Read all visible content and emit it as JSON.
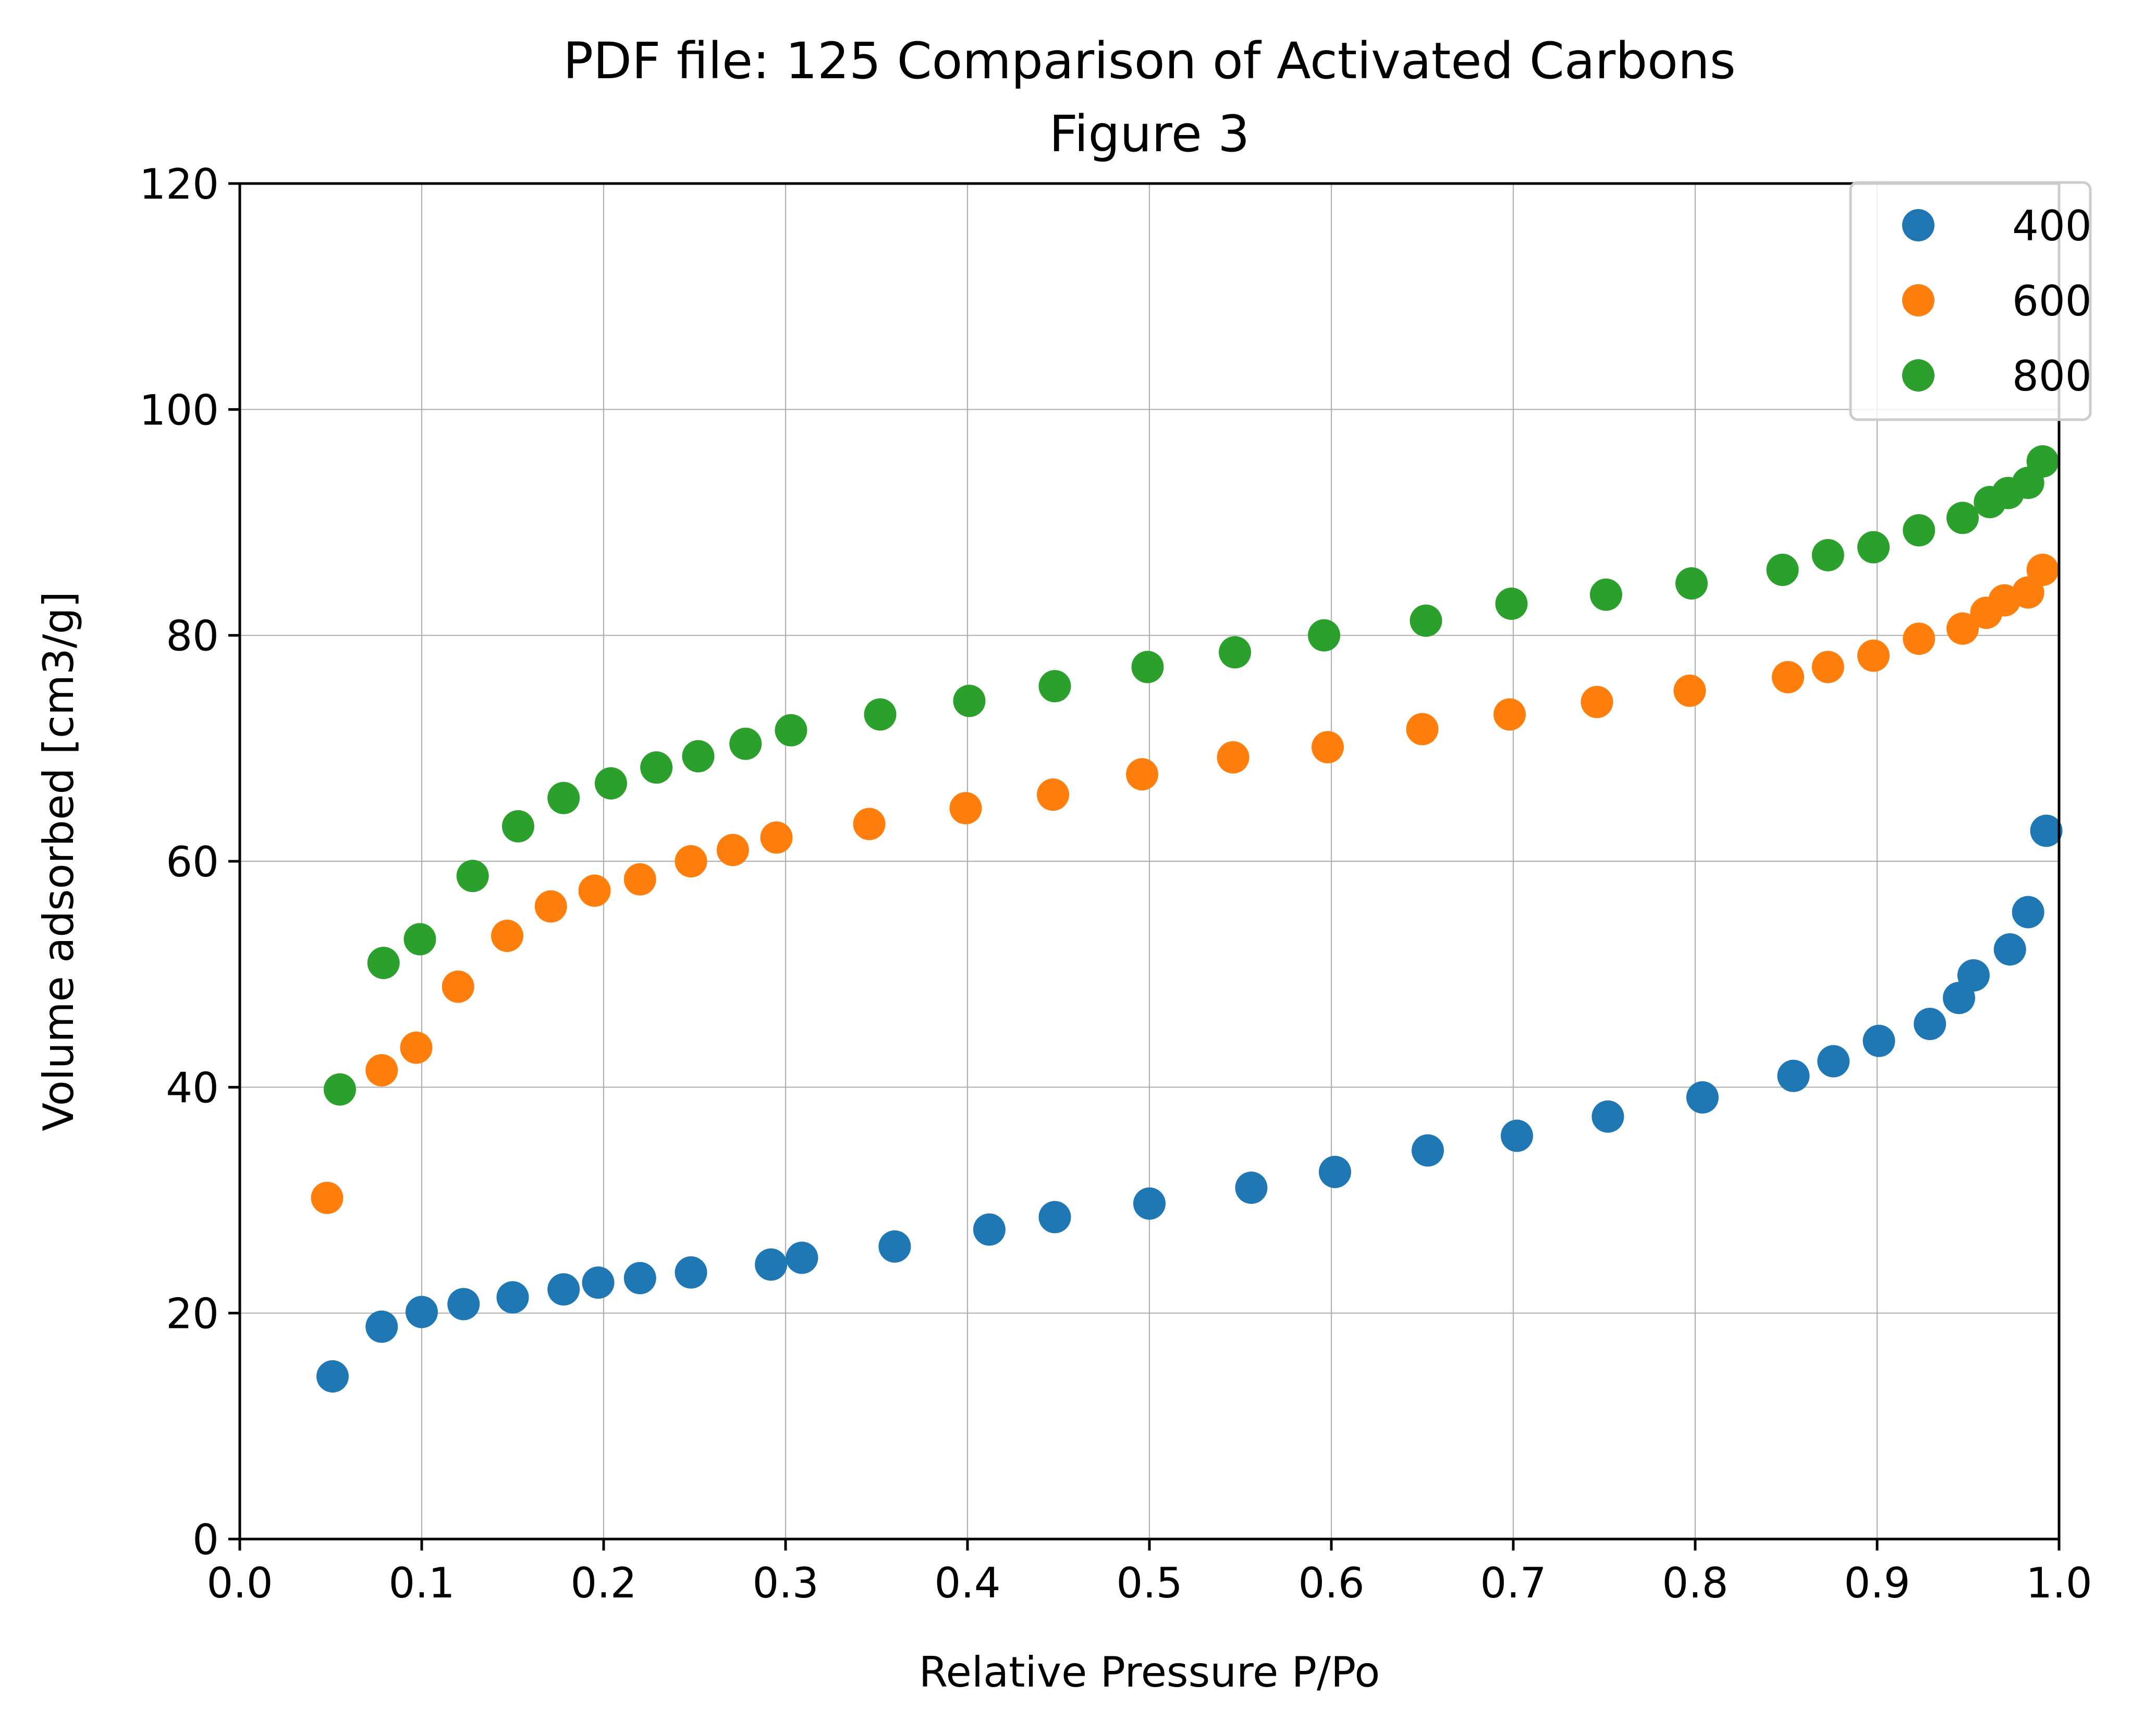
{
  "chart_data": {
    "type": "scatter",
    "title": "PDF file: 125 Comparison of Activated Carbons",
    "subtitle": "Figure 3",
    "xlabel": "Relative Pressure P/Po",
    "ylabel": "Volume adsorbed [cm3/g]",
    "xlim": [
      0.0,
      1.0
    ],
    "ylim": [
      0,
      120
    ],
    "xticks": [
      "0.0",
      "0.1",
      "0.2",
      "0.3",
      "0.4",
      "0.5",
      "0.6",
      "0.7",
      "0.8",
      "0.9",
      "1.0"
    ],
    "yticks": [
      "0",
      "20",
      "40",
      "60",
      "80",
      "100",
      "120"
    ],
    "grid": true,
    "legend_position": "top-right",
    "series": [
      {
        "name": "400",
        "color": "#1f77b4",
        "x": [
          0.051,
          0.078,
          0.1,
          0.123,
          0.15,
          0.178,
          0.197,
          0.22,
          0.248,
          0.292,
          0.309,
          0.36,
          0.412,
          0.448,
          0.5,
          0.556,
          0.602,
          0.653,
          0.702,
          0.752,
          0.804,
          0.854,
          0.876,
          0.901,
          0.929,
          0.945,
          0.953,
          0.973,
          0.983,
          0.993
        ],
        "y": [
          14.4,
          18.8,
          20.1,
          20.8,
          21.4,
          22.1,
          22.7,
          23.1,
          23.6,
          24.3,
          24.9,
          25.9,
          27.4,
          28.5,
          29.7,
          31.1,
          32.5,
          34.4,
          35.7,
          37.4,
          39.1,
          41.0,
          42.3,
          44.1,
          45.6,
          47.9,
          49.9,
          52.2,
          55.5,
          62.7
        ]
      },
      {
        "name": "600",
        "color": "#ff7f0e",
        "x": [
          0.048,
          0.078,
          0.097,
          0.12,
          0.147,
          0.171,
          0.195,
          0.22,
          0.248,
          0.271,
          0.295,
          0.346,
          0.399,
          0.447,
          0.496,
          0.546,
          0.598,
          0.65,
          0.698,
          0.746,
          0.797,
          0.851,
          0.873,
          0.898,
          0.923,
          0.947,
          0.96,
          0.97,
          0.983,
          0.991
        ],
        "y": [
          30.2,
          41.5,
          43.5,
          48.9,
          53.4,
          56.0,
          57.4,
          58.4,
          60.0,
          61.0,
          62.1,
          63.3,
          64.7,
          65.9,
          67.7,
          69.2,
          70.1,
          71.7,
          73.0,
          74.1,
          75.1,
          76.3,
          77.2,
          78.2,
          79.7,
          80.6,
          82.0,
          83.1,
          83.8,
          85.8
        ]
      },
      {
        "name": "800",
        "color": "#2ca02c",
        "x": [
          0.055,
          0.079,
          0.099,
          0.128,
          0.153,
          0.178,
          0.204,
          0.229,
          0.252,
          0.278,
          0.303,
          0.352,
          0.401,
          0.448,
          0.499,
          0.547,
          0.596,
          0.652,
          0.699,
          0.751,
          0.798,
          0.848,
          0.873,
          0.898,
          0.923,
          0.947,
          0.962,
          0.972,
          0.983,
          0.991
        ],
        "y": [
          39.8,
          51.0,
          53.1,
          58.7,
          63.1,
          65.6,
          66.9,
          68.3,
          69.3,
          70.4,
          71.6,
          73.0,
          74.2,
          75.5,
          77.2,
          78.5,
          80.0,
          81.3,
          82.8,
          83.6,
          84.6,
          85.8,
          87.1,
          87.8,
          89.3,
          90.4,
          91.8,
          92.6,
          93.5,
          95.4
        ]
      }
    ]
  }
}
